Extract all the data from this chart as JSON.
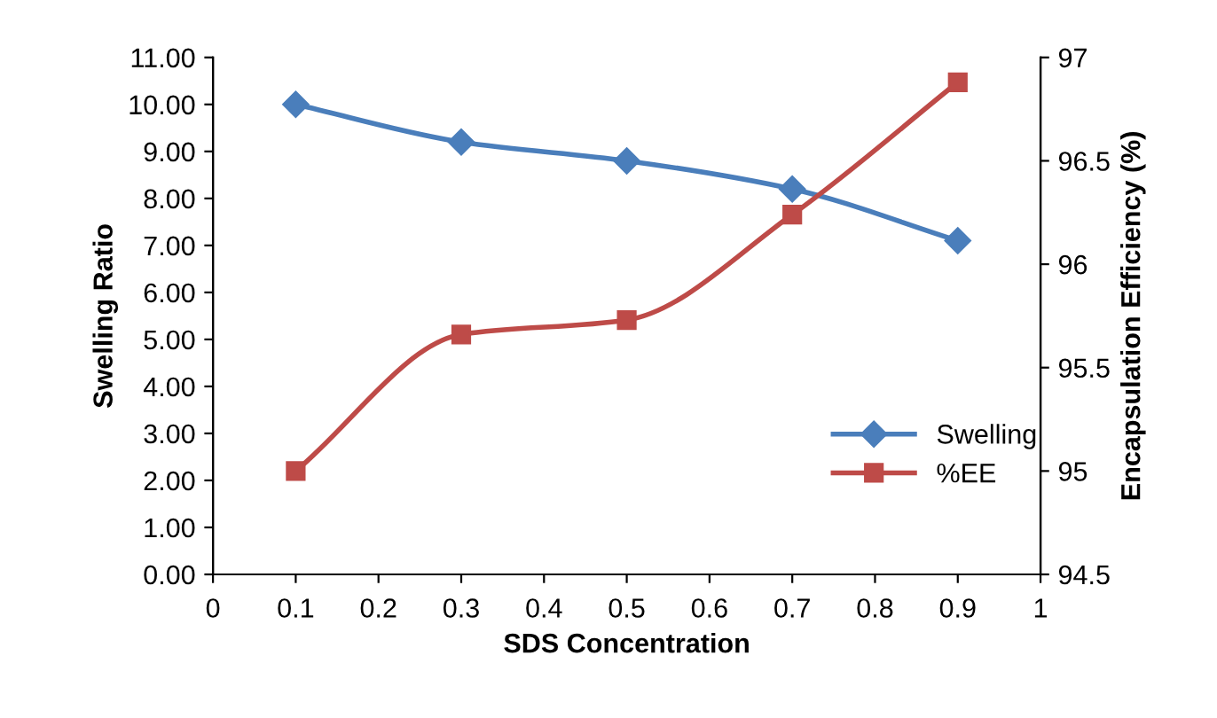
{
  "chart_data": {
    "type": "line",
    "xlabel": "SDS Concentration",
    "ylabel": "Swelling Ratio",
    "y2label": "Encapsulation Efficiency (%)",
    "x": [
      0.1,
      0.3,
      0.5,
      0.7,
      0.9
    ],
    "series": [
      {
        "name": "Swelling",
        "color": "#4a7ebb",
        "marker": "diamond",
        "values": [
          10.0,
          9.2,
          8.8,
          8.2,
          7.1
        ]
      },
      {
        "name": "%EE",
        "color": "#be4b48",
        "marker": "square",
        "axis": "y2",
        "values": [
          95.0,
          95.66,
          95.73,
          96.24,
          96.88
        ]
      }
    ],
    "xlim": [
      0,
      1
    ],
    "xticks": [
      0,
      0.1,
      0.2,
      0.3,
      0.4,
      0.5,
      0.6,
      0.7,
      0.8,
      0.9,
      1
    ],
    "ylim": [
      0,
      11
    ],
    "yticks": [
      {
        "value": 0,
        "label": "0.00"
      },
      {
        "value": 1,
        "label": "1.00"
      },
      {
        "value": 2,
        "label": "2.00"
      },
      {
        "value": 3,
        "label": "3.00"
      },
      {
        "value": 4,
        "label": "4.00"
      },
      {
        "value": 5,
        "label": "5.00"
      },
      {
        "value": 6,
        "label": "6.00"
      },
      {
        "value": 7,
        "label": "7.00"
      },
      {
        "value": 8,
        "label": "8.00"
      },
      {
        "value": 9,
        "label": "9.00"
      },
      {
        "value": 10,
        "label": "10.00"
      },
      {
        "value": 11,
        "label": "11.00"
      }
    ],
    "y2lim": [
      94.5,
      97
    ],
    "y2ticks": [
      94.5,
      95,
      95.5,
      96,
      96.5,
      97
    ],
    "legend": "bottom right",
    "grid": false
  }
}
